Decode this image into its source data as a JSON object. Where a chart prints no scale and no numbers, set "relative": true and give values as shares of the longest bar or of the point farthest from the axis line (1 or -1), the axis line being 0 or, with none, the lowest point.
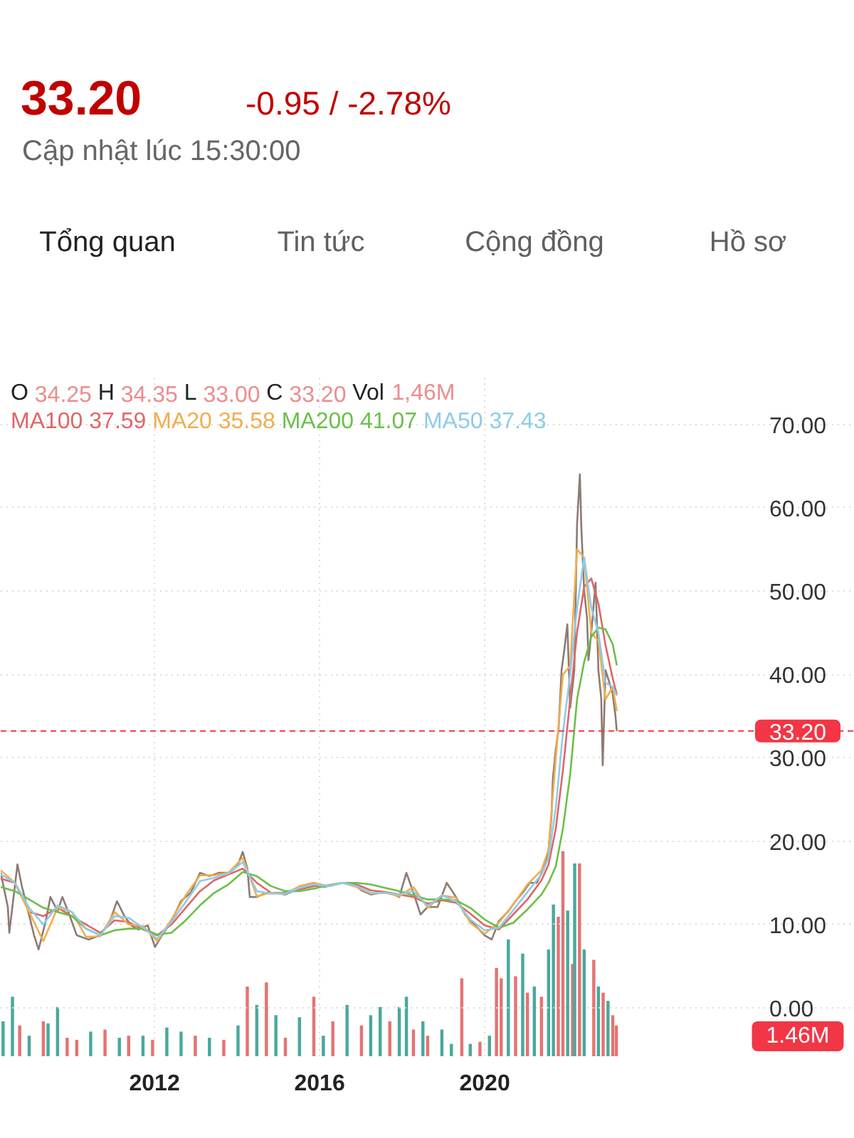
{
  "chart_data": [
    {
      "type": "other",
      "title": "33.20",
      "subtitle": "Cập nhật lúc 15:30:00",
      "annotations": [
        "-0.95 / -2.78%",
        "Tổng quan",
        "Tin tức",
        "Cộng đồng",
        "Hồ sơ"
      ]
    },
    {
      "type": "line",
      "xlim": [
        "2008-04-10",
        "2028-12-18"
      ],
      "xticks": [
        "2012",
        "2016",
        "2020"
      ],
      "ylim": [
        -5.8,
        76.1
      ],
      "yticks": [
        {
          "value": 0,
          "label": "0.00"
        },
        {
          "value": 10,
          "label": "10.00"
        },
        {
          "value": 20,
          "label": "20.00"
        },
        {
          "value": 30,
          "label": "30.00"
        },
        {
          "value": 40,
          "label": "40.00"
        },
        {
          "value": 50,
          "label": "50.00"
        },
        {
          "value": 60,
          "label": "60.00"
        },
        {
          "value": 70,
          "label": "70.00"
        }
      ],
      "grid": true,
      "legend": "top left",
      "annotations": [
        "O 34.25 H 34.35 L 33.00 C 33.20 Vol 1,46M"
      ],
      "ref_lines": [
        {
          "axis": "y",
          "value": 33.2,
          "label": "33.20",
          "color": "#f23645",
          "line_style": "dashed"
        }
      ],
      "x": [
        "2008-04-10",
        "2008-08-14",
        "2008-12-18",
        "2009-04-22",
        "2009-08-26",
        "2009-12-31",
        "2010-05-05",
        "2010-09-09",
        "2011-01-13",
        "2011-05-17",
        "2011-09-21",
        "2012-01-26",
        "2012-05-30",
        "2012-10-03",
        "2013-02-07",
        "2013-06-12",
        "2013-10-16",
        "2014-02-20",
        "2014-06-24",
        "2014-10-28",
        "2015-03-04",
        "2015-07-07",
        "2015-11-11",
        "2016-03-15",
        "2016-07-20",
        "2016-11-23",
        "2017-03-28",
        "2017-08-01",
        "2017-12-06",
        "2018-04-10",
        "2018-08-14",
        "2018-12-18",
        "2019-04-22",
        "2019-08-26",
        "2019-12-31",
        "2020-05-05",
        "2020-09-09",
        "2021-01-13",
        "2021-05-17",
        "2021-07-19",
        "2021-09-21",
        "2021-11-23",
        "2022-01-26",
        "2022-03-28",
        "2022-05-30",
        "2022-08-01",
        "2022-10-03",
        "2022-12-05",
        "2023-02-07",
        "2023-03-15"
      ],
      "series": [
        {
          "color": "#8d7b74",
          "x": [
            "2008-04-10",
            "2008-06-12",
            "2008-06-25",
            "2008-09-05",
            "2008-10-16",
            "2008-12-18",
            "2009-01-30",
            "2009-03-11",
            "2009-05-13",
            "2009-06-24",
            "2009-08-26",
            "2009-10-08",
            "2009-12-10",
            "2010-02-12",
            "2010-05-26",
            "2010-09-09",
            "2010-12-02",
            "2011-02-03",
            "2011-04-06",
            "2011-06-07",
            "2011-08-10",
            "2011-11-02",
            "2012-01-05",
            "2012-03-07",
            "2012-05-30",
            "2012-08-22",
            "2012-11-15",
            "2013-02-07",
            "2013-05-01",
            "2013-07-24",
            "2013-10-16",
            "2014-01-09",
            "2014-02-20",
            "2014-04-02",
            "2014-04-23",
            "2014-06-24",
            "2014-09-17",
            "2014-12-10",
            "2015-03-04",
            "2015-05-26",
            "2015-08-18",
            "2015-11-11",
            "2016-02-03",
            "2016-04-27",
            "2016-07-20",
            "2016-10-12",
            "2017-01-05",
            "2017-03-28",
            "2017-06-20",
            "2017-09-13",
            "2017-12-06",
            "2018-02-07",
            "2018-04-10",
            "2018-06-12",
            "2018-08-14",
            "2018-11-10",
            "2019-01-30",
            "2019-04-22",
            "2019-07-15",
            "2019-10-08",
            "2019-12-31",
            "2020-03-03",
            "2020-05-05",
            "2020-07-28",
            "2020-09-29",
            "2020-12-01",
            "2021-02-03",
            "2021-04-06",
            "2021-06-07",
            "2021-07-19",
            "2021-08-14",
            "2021-08-26",
            "2021-09-21",
            "2021-10-16",
            "2021-11-11",
            "2021-12-06",
            "2022-01-01",
            "2022-01-26",
            "2022-03-04",
            "2022-03-28",
            "2022-04-22",
            "2022-05-05",
            "2022-05-30",
            "2022-06-24",
            "2022-07-07",
            "2022-08-01",
            "2022-08-26",
            "2022-09-08",
            "2022-10-03",
            "2022-10-28",
            "2022-11-10",
            "2022-12-05",
            "2023-01-13",
            "2023-02-07",
            "2023-03-03",
            "2023-03-15"
          ],
          "values": [
            16.2,
            12.1,
            9.0,
            17.2,
            14.5,
            11.1,
            8.7,
            7.0,
            10.4,
            13.3,
            11.6,
            13.3,
            11.1,
            8.7,
            8.2,
            8.7,
            10.4,
            12.8,
            11.1,
            9.9,
            9.4,
            9.9,
            7.3,
            8.7,
            10.4,
            12.8,
            13.8,
            16.2,
            15.8,
            16.2,
            16.2,
            17.2,
            18.7,
            16.7,
            13.3,
            13.3,
            13.8,
            13.8,
            13.6,
            14.1,
            14.7,
            15.0,
            14.5,
            14.7,
            15.0,
            15.0,
            14.1,
            13.6,
            13.8,
            13.8,
            13.3,
            16.2,
            13.8,
            11.2,
            12.1,
            12.1,
            15.0,
            13.3,
            11.1,
            9.9,
            8.7,
            8.2,
            10.4,
            11.6,
            12.8,
            13.8,
            15.0,
            15.0,
            16.7,
            18.9,
            23.0,
            27.5,
            31.0,
            33.5,
            40.5,
            43.0,
            46.0,
            36.0,
            40.5,
            58.0,
            64.0,
            57.6,
            50.0,
            46.8,
            41.7,
            45.0,
            49.0,
            51.0,
            40.5,
            37.1,
            29.1,
            40.5,
            38.8,
            37.6,
            35.0,
            33.2
          ]
        },
        {
          "name": "MA100 37.59",
          "color": "#e06666",
          "values": [
            15.5,
            15.0,
            11.5,
            11.0,
            12.0,
            11.0,
            10.0,
            9.0,
            10.5,
            10.3,
            9.4,
            8.7,
            10.0,
            12.0,
            14.0,
            15.3,
            16.0,
            16.7,
            15.0,
            13.8,
            13.8,
            14.2,
            14.6,
            14.7,
            15.0,
            14.8,
            14.1,
            13.9,
            13.6,
            13.3,
            12.5,
            12.9,
            12.6,
            11.3,
            9.9,
            9.4,
            11.2,
            13.0,
            15.3,
            17.2,
            21.5,
            28.5,
            37.0,
            45.0,
            50.5,
            51.5,
            48.5,
            43.5,
            39.5,
            37.59
          ]
        },
        {
          "name": "MA20 35.58",
          "color": "#f0ad4e",
          "values": [
            16.5,
            15.0,
            11.5,
            8.0,
            12.0,
            11.5,
            8.5,
            8.6,
            11.5,
            10.0,
            9.8,
            8.0,
            10.6,
            13.5,
            15.9,
            15.9,
            16.2,
            18.0,
            13.4,
            13.8,
            13.7,
            14.6,
            15.0,
            14.6,
            15.0,
            14.5,
            13.7,
            13.8,
            13.4,
            14.5,
            12.0,
            13.5,
            13.2,
            10.2,
            8.9,
            10.2,
            12.4,
            14.8,
            16.5,
            19.0,
            30.0,
            40.0,
            41.0,
            55.0,
            54.0,
            45.0,
            44.0,
            37.0,
            38.5,
            35.58
          ]
        },
        {
          "name": "MA200 41.07",
          "color": "#6cbf4a",
          "values": [
            14.5,
            14.0,
            13.0,
            12.0,
            11.5,
            11.0,
            9.5,
            8.7,
            9.3,
            9.5,
            9.5,
            8.8,
            9.0,
            10.5,
            12.3,
            13.8,
            14.8,
            16.3,
            15.8,
            14.6,
            14.0,
            14.0,
            14.3,
            14.7,
            15.0,
            15.0,
            14.8,
            14.4,
            14.0,
            13.5,
            13.0,
            13.0,
            12.9,
            12.0,
            10.6,
            9.6,
            10.2,
            11.8,
            13.6,
            15.0,
            17.0,
            21.5,
            28.0,
            37.0,
            41.5,
            44.5,
            45.6,
            45.4,
            43.6,
            41.07
          ]
        },
        {
          "name": "MA50 37.43",
          "color": "#8fcbe8",
          "values": [
            16.0,
            15.0,
            12.0,
            10.0,
            12.3,
            11.5,
            9.5,
            8.7,
            11.0,
            10.8,
            9.6,
            8.3,
            10.3,
            12.7,
            15.2,
            15.6,
            16.1,
            17.5,
            14.0,
            13.7,
            13.7,
            14.4,
            14.8,
            14.6,
            15.0,
            14.6,
            13.8,
            13.8,
            13.6,
            14.0,
            12.2,
            13.5,
            12.8,
            10.6,
            9.3,
            9.6,
            11.7,
            13.9,
            16.0,
            18.0,
            24.0,
            33.0,
            40.0,
            48.0,
            54.0,
            48.0,
            45.0,
            39.0,
            38.5,
            37.43
          ]
        }
      ]
    },
    {
      "type": "bar",
      "relative": true,
      "tick_labels": false,
      "xlim": [
        "2008-04-10",
        "2028-12-18"
      ],
      "annotations": [
        "1.46M"
      ],
      "x": [
        "2008-05-01",
        "2008-07-23",
        "2008-09-25",
        "2008-12-18",
        "2009-04-22",
        "2009-06-03",
        "2009-08-26",
        "2009-11-19",
        "2010-02-12",
        "2010-06-15",
        "2010-10-20",
        "2011-02-24",
        "2011-05-17",
        "2011-09-21",
        "2011-12-15",
        "2012-04-19",
        "2012-08-23",
        "2012-12-27",
        "2013-05-01",
        "2013-09-05",
        "2014-01-09",
        "2014-04-01",
        "2014-06-24",
        "2014-09-17",
        "2014-12-10",
        "2015-03-04",
        "2015-07-07",
        "2015-11-11",
        "2016-02-03",
        "2016-04-27",
        "2016-08-31",
        "2017-01-05",
        "2017-03-28",
        "2017-06-20",
        "2017-09-13",
        "2017-12-06",
        "2018-02-07",
        "2018-04-10",
        "2018-07-03",
        "2018-08-14",
        "2018-12-18",
        "2019-03-12",
        "2019-06-12",
        "2019-08-26",
        "2019-11-20",
        "2020-02-12",
        "2020-04-14",
        "2020-05-26",
        "2020-07-28",
        "2020-09-30",
        "2020-12-02",
        "2021-01-13",
        "2021-03-15",
        "2021-05-17",
        "2021-07-19",
        "2021-08-31",
        "2021-10-13",
        "2021-11-23",
        "2022-01-04",
        "2022-02-16",
        "2022-03-07",
        "2022-04-19",
        "2022-05-30",
        "2022-08-23",
        "2022-10-03",
        "2022-11-14",
        "2022-12-27",
        "2023-02-07",
        "2023-03-11"
      ],
      "values": [
        0.17,
        0.29,
        0.15,
        0.1,
        0.17,
        0.16,
        0.24,
        0.09,
        0.08,
        0.12,
        0.13,
        0.09,
        0.1,
        0.1,
        0.08,
        0.14,
        0.12,
        0.1,
        0.09,
        0.08,
        0.15,
        0.34,
        0.25,
        0.36,
        0.2,
        0.09,
        0.19,
        0.29,
        0.1,
        0.17,
        0.25,
        0.15,
        0.2,
        0.24,
        0.17,
        0.24,
        0.29,
        0.13,
        0.17,
        0.1,
        0.13,
        0.06,
        0.38,
        0.06,
        0.07,
        0.1,
        0.43,
        0.38,
        0.57,
        0.39,
        0.5,
        0.31,
        0.34,
        0.29,
        0.52,
        0.74,
        0.68,
        1.0,
        0.71,
        0.45,
        0.94,
        0.94,
        0.52,
        0.47,
        0.34,
        0.31,
        0.27,
        0.2,
        0.15
      ],
      "colors": [
        "#4aa89c",
        "#4aa89c",
        "#e57373",
        "#4aa89c",
        "#e57373",
        "#4aa89c",
        "#4aa89c",
        "#e57373",
        "#e57373",
        "#4aa89c",
        "#e57373",
        "#4aa89c",
        "#e57373",
        "#4aa89c",
        "#e57373",
        "#4aa89c",
        "#4aa89c",
        "#e57373",
        "#4aa89c",
        "#e57373",
        "#4aa89c",
        "#e57373",
        "#4aa89c",
        "#e57373",
        "#4aa89c",
        "#e57373",
        "#4aa89c",
        "#e57373",
        "#4aa89c",
        "#e57373",
        "#4aa89c",
        "#e57373",
        "#4aa89c",
        "#4aa89c",
        "#e57373",
        "#4aa89c",
        "#4aa89c",
        "#e57373",
        "#4aa89c",
        "#e57373",
        "#4aa89c",
        "#4aa89c",
        "#e57373",
        "#4aa89c",
        "#e57373",
        "#4aa89c",
        "#e57373",
        "#e57373",
        "#4aa89c",
        "#e57373",
        "#4aa89c",
        "#e57373",
        "#4aa89c",
        "#e57373",
        "#4aa89c",
        "#4aa89c",
        "#e57373",
        "#e57373",
        "#4aa89c",
        "#e57373",
        "#4aa89c",
        "#e57373",
        "#4aa89c",
        "#e57373",
        "#4aa89c",
        "#e57373",
        "#4aa89c",
        "#e57373",
        "#e57373"
      ]
    }
  ]
}
